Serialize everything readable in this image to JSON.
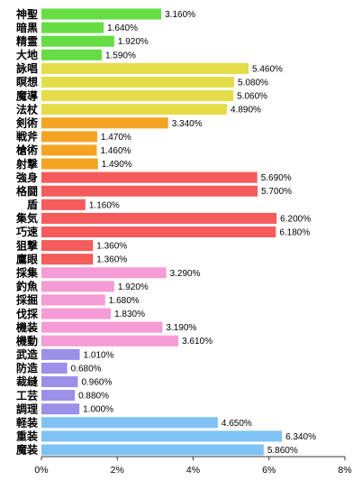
{
  "chart_data": {
    "type": "bar",
    "orientation": "horizontal",
    "title": "",
    "xlabel": "",
    "ylabel": "",
    "xlim": [
      0,
      8
    ],
    "grid": false,
    "legend": "none",
    "x_ticks": [
      "0%",
      "2%",
      "4%",
      "6%",
      "8%"
    ],
    "categories": [
      "神聖",
      "暗黒",
      "精霊",
      "大地",
      "詠唱",
      "瞑想",
      "魔導",
      "法杖",
      "剣術",
      "戦斧",
      "槍術",
      "射撃",
      "強身",
      "格闘",
      "盾",
      "集気",
      "巧速",
      "狙撃",
      "鷹眼",
      "採集",
      "釣魚",
      "採掘",
      "伐採",
      "機装",
      "機動",
      "武造",
      "防造",
      "裁縫",
      "工芸",
      "調理",
      "軽装",
      "重装",
      "魔装"
    ],
    "values": [
      3.16,
      1.64,
      1.92,
      1.59,
      5.46,
      5.08,
      5.06,
      4.89,
      3.34,
      1.47,
      1.46,
      1.49,
      5.69,
      5.7,
      1.16,
      6.2,
      6.18,
      1.36,
      1.36,
      3.29,
      1.92,
      1.68,
      1.83,
      3.19,
      3.61,
      1.01,
      0.68,
      0.96,
      0.88,
      1.0,
      4.65,
      6.34,
      5.86
    ],
    "value_labels": [
      "3.160%",
      "1.640%",
      "1.920%",
      "1.590%",
      "5.460%",
      "5.080%",
      "5.060%",
      "4.890%",
      "3.340%",
      "1.470%",
      "1.460%",
      "1.490%",
      "5.690%",
      "5.700%",
      "1.160%",
      "6.200%",
      "6.180%",
      "1.360%",
      "1.360%",
      "3.290%",
      "1.920%",
      "1.680%",
      "1.830%",
      "3.190%",
      "3.610%",
      "1.010%",
      "0.680%",
      "0.960%",
      "0.880%",
      "1.000%",
      "4.650%",
      "6.340%",
      "5.860%"
    ],
    "colors": [
      "#66dd44",
      "#66dd44",
      "#66dd44",
      "#66dd44",
      "#e5dc4a",
      "#e5dc4a",
      "#e5dc4a",
      "#e5dc4a",
      "#f4a322",
      "#f4a322",
      "#f4a322",
      "#f4a322",
      "#f55b5b",
      "#f55b5b",
      "#f55b5b",
      "#f55b5b",
      "#f55b5b",
      "#f55b5b",
      "#f55b5b",
      "#f59bd5",
      "#f59bd5",
      "#f59bd5",
      "#f59bd5",
      "#f59bd5",
      "#f59bd5",
      "#9b8fe8",
      "#9b8fe8",
      "#9b8fe8",
      "#9b8fe8",
      "#9b8fe8",
      "#7fc3f5",
      "#7fc3f5",
      "#7fc3f5"
    ]
  }
}
